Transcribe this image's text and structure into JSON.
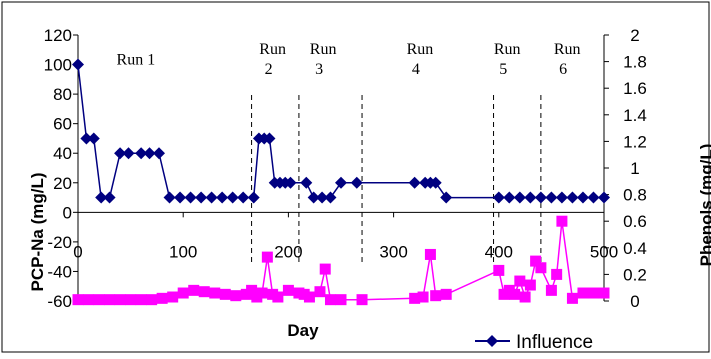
{
  "chart_data": {
    "type": "line",
    "xlabel": "Day",
    "ylabel_left": "PCP-Na (mg/L)",
    "ylabel_right": "Phenols (mg/L)",
    "x_ticks": [
      "0",
      "100",
      "200",
      "300",
      "400",
      "500"
    ],
    "y_left_ticks": [
      "120",
      "100",
      "80",
      "60",
      "40",
      "20",
      "0",
      "-20",
      "-40",
      "-60"
    ],
    "y_right_ticks": [
      "2",
      "1.8",
      "1.6",
      "1.4",
      "1.2",
      "1",
      "0.8",
      "0.6",
      "0.4",
      "0.2",
      "0"
    ],
    "xlim": [
      0,
      500
    ],
    "ylim_left": [
      -60,
      120
    ],
    "ylim_right": [
      0,
      2
    ],
    "run_boundaries": [
      165,
      210,
      270,
      395,
      440
    ],
    "runs": [
      {
        "line1": "Run 1",
        "line2": "",
        "x": 55,
        "y": 100
      },
      {
        "line1": "Run",
        "line2": "2",
        "x": 185,
        "y": 107
      },
      {
        "line1": "Run",
        "line2": "3",
        "x": 233,
        "y": 107
      },
      {
        "line1": "Run",
        "line2": "4",
        "x": 325,
        "y": 107
      },
      {
        "line1": "Run",
        "line2": "5",
        "x": 408,
        "y": 107
      },
      {
        "line1": "Run",
        "line2": "6",
        "x": 465,
        "y": 107
      }
    ],
    "series": [
      {
        "name": "Influence",
        "axis": "left",
        "color": "#000080",
        "marker": "diamond",
        "x": [
          0,
          8,
          15,
          22,
          30,
          40,
          48,
          60,
          68,
          77,
          87,
          97,
          107,
          117,
          127,
          137,
          147,
          157,
          167,
          172,
          177,
          182,
          187,
          192,
          197,
          202,
          217,
          224,
          232,
          240,
          250,
          265,
          320,
          330,
          335,
          340,
          350,
          400,
          410,
          420,
          430,
          440,
          450,
          460,
          470,
          480,
          490,
          500
        ],
        "y": [
          100,
          50,
          50,
          10,
          10,
          40,
          40,
          40,
          40,
          40,
          10,
          10,
          10,
          10,
          10,
          10,
          10,
          10,
          10,
          50,
          50,
          50,
          20,
          20,
          20,
          20,
          20,
          10,
          10,
          10,
          20,
          20,
          20,
          20,
          20,
          20,
          10,
          10,
          10,
          10,
          10,
          10,
          10,
          10,
          10,
          10,
          10,
          10
        ]
      },
      {
        "name": "",
        "axis": "right",
        "color": "#FF00FF",
        "marker": "square",
        "x": [
          0,
          10,
          20,
          30,
          40,
          50,
          60,
          70,
          80,
          90,
          100,
          110,
          120,
          130,
          140,
          150,
          160,
          165,
          170,
          175,
          180,
          185,
          190,
          200,
          210,
          215,
          220,
          230,
          235,
          240,
          250,
          270,
          320,
          328,
          335,
          340,
          350,
          400,
          405,
          410,
          415,
          420,
          425,
          430,
          435,
          440,
          450,
          455,
          460,
          470,
          480,
          490,
          500
        ],
        "y": [
          0.01,
          0.01,
          0.01,
          0.01,
          0.01,
          0.01,
          0.01,
          0.01,
          0.02,
          0.03,
          0.06,
          0.08,
          0.07,
          0.06,
          0.05,
          0.04,
          0.05,
          0.08,
          0.03,
          0.06,
          0.33,
          0.05,
          0.03,
          0.08,
          0.06,
          0.05,
          0.03,
          0.07,
          0.24,
          0.01,
          0.01,
          0.01,
          0.02,
          0.03,
          0.35,
          0.04,
          0.05,
          0.23,
          0.05,
          0.08,
          0.05,
          0.15,
          0.03,
          0.12,
          0.3,
          0.25,
          0.08,
          0.2,
          0.6,
          0.02,
          0.06,
          0.06,
          0.06
        ]
      }
    ],
    "legend": {
      "label": "Influence",
      "placement": "bottom-right"
    },
    "grid": false
  },
  "colors": {
    "navy": "#000080",
    "magenta": "#FF00FF"
  }
}
